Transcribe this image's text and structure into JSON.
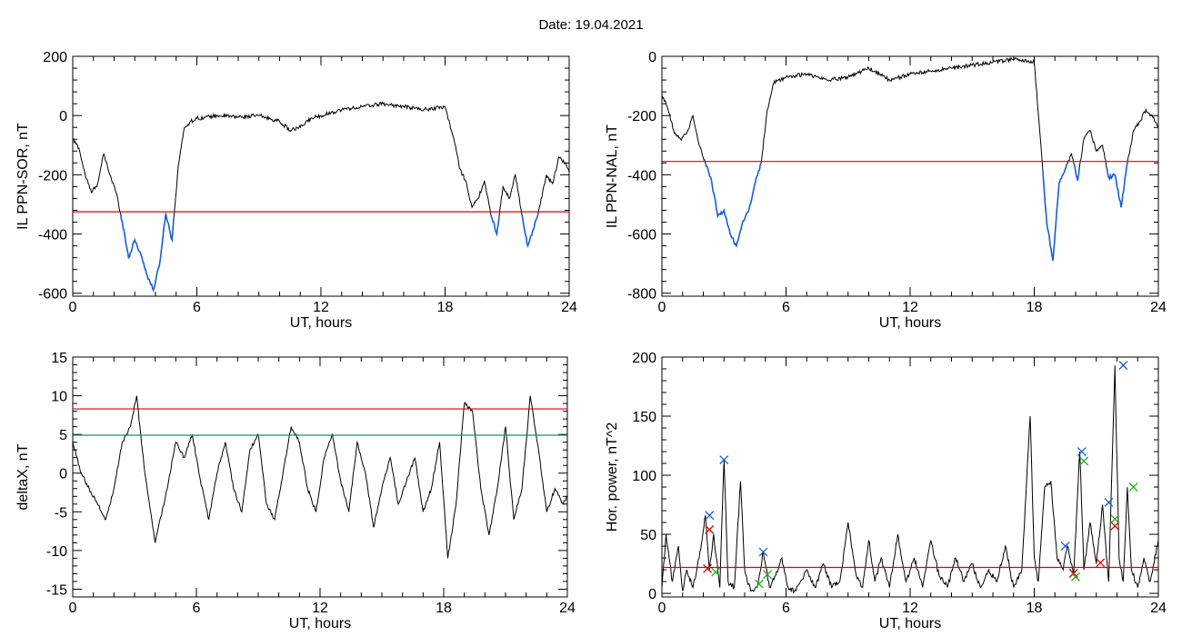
{
  "figure_title": "Date:  19.04.2021",
  "colors": {
    "signal": "#000000",
    "below_threshold": "#1a5fd0",
    "threshold": "#dd0000",
    "threshold2": "#1a8a8a",
    "marker_blue": "#1a5fd0",
    "marker_red": "#dd0000",
    "marker_green": "#22aa22"
  },
  "chart_data": [
    {
      "id": "p1",
      "type": "line",
      "xlabel": "UT, hours",
      "ylabel": "IL PPN-SOR, nT",
      "xlim": [
        0,
        24
      ],
      "ylim": [
        -610,
        200
      ],
      "xticks": [
        0,
        6,
        12,
        18,
        24
      ],
      "yticks": [
        -600,
        -400,
        -200,
        0,
        200
      ],
      "threshold": -325,
      "x": [
        0,
        0.3,
        0.6,
        0.9,
        1.2,
        1.5,
        1.8,
        2.1,
        2.4,
        2.7,
        3.0,
        3.3,
        3.6,
        3.9,
        4.2,
        4.5,
        4.8,
        5.1,
        5.4,
        5.7,
        6,
        7,
        8,
        9,
        10,
        10.5,
        11,
        11.5,
        12,
        13,
        14,
        15,
        16,
        17,
        18,
        18.5,
        18.7,
        19,
        19.3,
        19.6,
        19.9,
        20.2,
        20.5,
        20.8,
        21.1,
        21.4,
        21.7,
        22.0,
        22.3,
        22.6,
        22.9,
        23.2,
        23.5,
        23.8,
        24
      ],
      "y": [
        -80,
        -110,
        -200,
        -260,
        -230,
        -130,
        -200,
        -260,
        -360,
        -480,
        -420,
        -470,
        -540,
        -590,
        -500,
        -330,
        -420,
        -170,
        -40,
        -20,
        -10,
        0,
        -5,
        0,
        -20,
        -50,
        -40,
        -10,
        0,
        20,
        30,
        40,
        30,
        20,
        30,
        -100,
        -180,
        -220,
        -310,
        -280,
        -220,
        -330,
        -400,
        -240,
        -280,
        -200,
        -330,
        -440,
        -380,
        -300,
        -200,
        -230,
        -140,
        -160,
        -190
      ]
    },
    {
      "id": "p2",
      "type": "line",
      "xlabel": "UT, hours",
      "ylabel": "IL PPN-NAL, nT",
      "xlim": [
        0,
        24
      ],
      "ylim": [
        -810,
        0
      ],
      "xticks": [
        0,
        6,
        12,
        18,
        24
      ],
      "yticks": [
        -800,
        -600,
        -400,
        -200,
        0
      ],
      "threshold": -355,
      "x": [
        0,
        0.3,
        0.6,
        0.9,
        1.2,
        1.5,
        1.8,
        2.1,
        2.4,
        2.7,
        3.0,
        3.3,
        3.6,
        3.9,
        4.2,
        4.5,
        4.8,
        5.1,
        5.4,
        6,
        7,
        8,
        9,
        10,
        11,
        12,
        13,
        14,
        15,
        16,
        17,
        18,
        18.3,
        18.6,
        18.9,
        19.2,
        19.5,
        19.8,
        20.1,
        20.4,
        20.7,
        21.0,
        21.3,
        21.6,
        21.9,
        22.2,
        22.5,
        22.8,
        23.1,
        23.4,
        23.7,
        24
      ],
      "y": [
        -130,
        -180,
        -260,
        -280,
        -260,
        -200,
        -300,
        -360,
        -420,
        -540,
        -520,
        -600,
        -640,
        -560,
        -520,
        -430,
        -360,
        -180,
        -90,
        -70,
        -60,
        -80,
        -70,
        -40,
        -80,
        -60,
        -50,
        -40,
        -30,
        -20,
        -10,
        -20,
        -280,
        -560,
        -690,
        -430,
        -380,
        -330,
        -420,
        -280,
        -250,
        -320,
        -300,
        -410,
        -400,
        -510,
        -360,
        -250,
        -220,
        -180,
        -200,
        -240
      ]
    },
    {
      "id": "p3",
      "type": "line",
      "xlabel": "UT, hours",
      "ylabel": "deltaX, nT",
      "xlim": [
        0,
        24
      ],
      "ylim": [
        -16,
        15
      ],
      "xticks": [
        0,
        6,
        12,
        18,
        24
      ],
      "yticks": [
        -15,
        -10,
        -5,
        0,
        5,
        10,
        15
      ],
      "threshold": 8.3,
      "threshold2": 4.9,
      "x": [
        0,
        0.4,
        0.8,
        1.2,
        1.6,
        2.0,
        2.4,
        2.8,
        3.1,
        3.5,
        4.0,
        4.5,
        5.0,
        5.4,
        5.8,
        6.2,
        6.6,
        7.0,
        7.4,
        7.8,
        8.2,
        8.6,
        9.0,
        9.4,
        9.8,
        10.2,
        10.6,
        11.0,
        11.4,
        11.8,
        12.2,
        12.6,
        13.0,
        13.4,
        13.8,
        14.2,
        14.6,
        15.0,
        15.4,
        15.8,
        16.2,
        16.6,
        17.0,
        17.4,
        17.8,
        18.2,
        18.6,
        19.0,
        19.4,
        19.8,
        20.2,
        20.6,
        21.0,
        21.4,
        21.8,
        22.2,
        22.6,
        23.0,
        23.4,
        23.8,
        24
      ],
      "y": [
        4,
        0,
        -2,
        -4,
        -6,
        -2,
        4,
        6,
        10,
        0,
        -9,
        -3,
        4,
        2,
        5,
        -1,
        -6,
        0,
        4,
        -2,
        -5,
        3,
        5,
        -4,
        -6,
        0,
        6,
        4,
        -2,
        -5,
        2,
        5,
        -1,
        -5,
        4,
        0,
        -7,
        -2,
        2,
        -4,
        -1,
        2,
        -5,
        -2,
        4,
        -11,
        -4,
        9,
        8,
        -2,
        -8,
        -2,
        6,
        -6,
        -2,
        10,
        3,
        -5,
        -2,
        -4,
        -3
      ]
    },
    {
      "id": "p4",
      "type": "line",
      "xlabel": "UT, hours",
      "ylabel": "Hor. power, nT^2",
      "xlim": [
        0,
        24
      ],
      "ylim": [
        -3,
        200
      ],
      "xticks": [
        0,
        6,
        12,
        18,
        24
      ],
      "yticks": [
        0,
        50,
        100,
        150,
        200
      ],
      "threshold": 22,
      "x": [
        0,
        0.2,
        0.5,
        0.8,
        1.0,
        1.2,
        1.5,
        1.8,
        2.1,
        2.3,
        2.5,
        2.8,
        3.0,
        3.2,
        3.5,
        3.8,
        4.0,
        4.3,
        4.6,
        4.9,
        5.2,
        5.5,
        5.8,
        6.1,
        6.4,
        6.7,
        7.0,
        7.4,
        7.8,
        8.2,
        8.6,
        9.0,
        9.4,
        9.7,
        10.0,
        10.3,
        10.6,
        11.0,
        11.4,
        11.8,
        12.2,
        12.6,
        13.0,
        13.4,
        13.8,
        14.2,
        14.6,
        15.0,
        15.4,
        15.8,
        16.2,
        16.6,
        17.0,
        17.4,
        17.8,
        18.0,
        18.2,
        18.5,
        18.8,
        19.1,
        19.4,
        19.6,
        19.9,
        20.2,
        20.4,
        20.7,
        21.0,
        21.3,
        21.6,
        21.9,
        22.1,
        22.3,
        22.5,
        22.7,
        23.0,
        23.3,
        23.6,
        24
      ],
      "y": [
        5,
        50,
        10,
        40,
        2,
        20,
        5,
        30,
        66,
        20,
        50,
        5,
        113,
        10,
        5,
        95,
        20,
        2,
        5,
        35,
        5,
        15,
        30,
        5,
        2,
        10,
        20,
        5,
        25,
        5,
        10,
        60,
        15,
        5,
        45,
        10,
        30,
        5,
        50,
        10,
        30,
        5,
        45,
        15,
        5,
        30,
        10,
        25,
        5,
        20,
        10,
        40,
        5,
        20,
        150,
        30,
        10,
        90,
        95,
        30,
        20,
        40,
        15,
        120,
        20,
        60,
        25,
        75,
        10,
        193,
        30,
        10,
        90,
        20,
        5,
        30,
        10,
        45
      ],
      "markers": {
        "blue_x": [
          [
            2.3,
            66
          ],
          [
            3.0,
            113
          ],
          [
            4.9,
            35
          ],
          [
            19.5,
            40
          ],
          [
            20.3,
            120
          ],
          [
            21.6,
            77
          ],
          [
            22.3,
            193
          ]
        ],
        "red_x": [
          [
            2.3,
            54
          ],
          [
            2.2,
            21
          ],
          [
            19.9,
            17
          ],
          [
            21.2,
            26
          ],
          [
            21.9,
            57
          ]
        ],
        "green_x": [
          [
            2.6,
            18
          ],
          [
            4.7,
            8
          ],
          [
            5.1,
            16
          ],
          [
            20.0,
            14
          ],
          [
            20.4,
            112
          ],
          [
            21.9,
            63
          ],
          [
            22.8,
            90
          ]
        ]
      }
    }
  ]
}
